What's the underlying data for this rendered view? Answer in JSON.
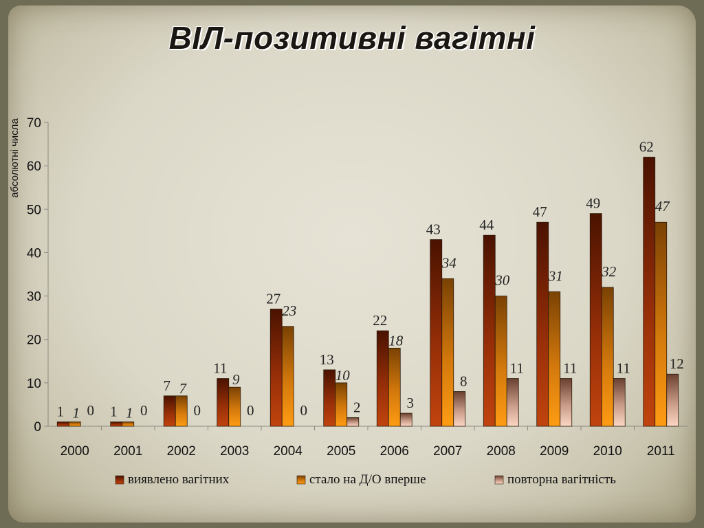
{
  "title": "ВІЛ-позитивні вагітні",
  "chart_data": {
    "type": "bar",
    "title": "ВІЛ-позитивні вагітні",
    "ylabel": "абсолютні числа",
    "xlabel": "",
    "ylim": [
      0,
      70
    ],
    "yticks": [
      0,
      10,
      20,
      30,
      40,
      50,
      60,
      70
    ],
    "grid": false,
    "legend_position": "bottom",
    "categories": [
      "2000",
      "2001",
      "2002",
      "2003",
      "2004",
      "2005",
      "2006",
      "2007",
      "2008",
      "2009",
      "2010",
      "2011"
    ],
    "series": [
      {
        "name": "виявлено вагітних",
        "color": "#8f2a06",
        "values": [
          1,
          1,
          7,
          11,
          27,
          13,
          22,
          43,
          44,
          47,
          49,
          62
        ]
      },
      {
        "name": "стало на Д/О вперше",
        "color": "#d77a0c",
        "values": [
          1,
          1,
          7,
          9,
          23,
          10,
          18,
          34,
          30,
          31,
          32,
          47
        ]
      },
      {
        "name": "повторна вагітність",
        "color": "#c9a08e",
        "values": [
          0,
          0,
          0,
          0,
          0,
          2,
          3,
          8,
          11,
          11,
          11,
          12
        ]
      }
    ]
  }
}
